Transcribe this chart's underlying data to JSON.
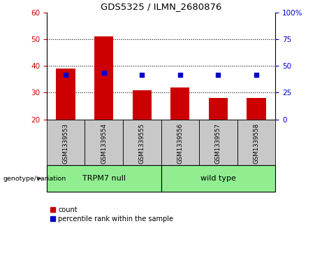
{
  "title": "GDS5325 / ILMN_2680876",
  "samples": [
    "GSM1339553",
    "GSM1339554",
    "GSM1339555",
    "GSM1339556",
    "GSM1339557",
    "GSM1339558"
  ],
  "counts": [
    39,
    51,
    31,
    32,
    28,
    28
  ],
  "percentile_ranks": [
    42,
    44,
    42,
    42,
    42,
    42
  ],
  "ylim_left": [
    20,
    60
  ],
  "ylim_right": [
    0,
    100
  ],
  "yticks_left": [
    20,
    30,
    40,
    50,
    60
  ],
  "yticks_right": [
    0,
    25,
    50,
    75,
    100
  ],
  "bar_color": "#cc0000",
  "dot_color": "#0000cc",
  "bar_bottom": 20,
  "groups": [
    {
      "label": "TRPM7 null",
      "indices": [
        0,
        1,
        2
      ],
      "color": "#90ee90"
    },
    {
      "label": "wild type",
      "indices": [
        3,
        4,
        5
      ],
      "color": "#90ee90"
    }
  ],
  "group_label_prefix": "genotype/variation",
  "legend_count_label": "count",
  "legend_percentile_label": "percentile rank within the sample",
  "bg_color": "#ffffff",
  "plot_bg_color": "#ffffff",
  "tick_label_color_left": "#cc0000",
  "tick_label_color_right": "#0000cc",
  "sample_bg_color": "#c8c8c8",
  "ytick_dotted_values": [
    30,
    40,
    50
  ],
  "bar_width": 0.5
}
